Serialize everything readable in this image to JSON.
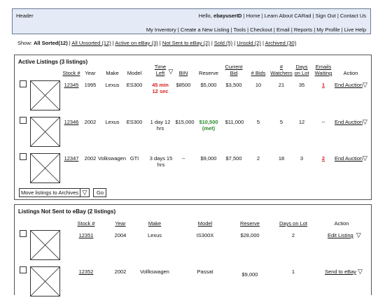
{
  "header": {
    "title": "Header",
    "greeting_prefix": "Hello, ",
    "user_id": "ebayuserID",
    "top_links": [
      "Home",
      "Learn About CARad",
      "Sign Out",
      "Contact Us"
    ],
    "nav_links": [
      "My Inventory",
      "Create a New Listing",
      "Tools",
      "Checkout",
      "Email",
      "Reports",
      "My Profile",
      "Live Help"
    ]
  },
  "filters": {
    "label": "Show:",
    "selected": "All Sorted(12)",
    "links": [
      "All Unsorted (12)",
      "Active on eBay (3)",
      "Not Sent to eBay (2)",
      "Sold (5)",
      "Unsold (2)",
      "Archived (30)"
    ]
  },
  "active": {
    "title": "Active Listings (3 listings)",
    "columns": {
      "stock": "Stock #",
      "year": "Year",
      "make": "Make",
      "model": "Model",
      "time_left_1": "Time",
      "time_left_2": "Left",
      "bin": "BIN",
      "reserve": "Reserve",
      "bid_1": "Current",
      "bid_2": "Bid",
      "bids": "# Bids",
      "watchers_1": "#",
      "watchers_2": "Watchers",
      "days_1": "Days",
      "days_2": "on Lot",
      "emails_1": "Emails",
      "emails_2": "Waiting",
      "action": "Action"
    },
    "rows": [
      {
        "stock": "12345",
        "year": "1995",
        "make": "Lexus",
        "model": "ES300",
        "time_1": "45 min",
        "time_2": "12 sec",
        "bin": "$8500",
        "reserve_1": "$5,000",
        "reserve_2": "",
        "bid": "$3,500",
        "bids": "10",
        "watchers": "21",
        "days": "35",
        "emails": "1",
        "action": "End Auction"
      },
      {
        "stock": "12346",
        "year": "2002",
        "make": "Lexus",
        "model": "ES300",
        "time_1": "1 day 12",
        "time_2": "hrs",
        "bin": "$15,000",
        "reserve_1": "$10,500",
        "reserve_2": "(met)",
        "bid": "$11,000",
        "bids": "5",
        "watchers": "5",
        "days": "12",
        "emails": "--",
        "action": "End Auction"
      },
      {
        "stock": "12347",
        "year": "2002",
        "make": "Volkswagen",
        "model": "GTI",
        "time_1": "3 days 15",
        "time_2": "hrs",
        "bin": "--",
        "reserve_1": "$9,000",
        "reserve_2": "",
        "bid": "$7,500",
        "bids": "2",
        "watchers": "18",
        "days": "3",
        "emails": "2",
        "action": "End Auction"
      }
    ],
    "bulk_select": "Move listings to Archives",
    "go_label": "Go"
  },
  "notsent": {
    "title": "Listings Not Sent to eBay (2 listings)",
    "columns": {
      "stock": "Stock #",
      "year": "Year",
      "make": "Make",
      "model": "Model",
      "reserve": "Reserve",
      "days": "Days on Lot",
      "action": "Action"
    },
    "rows": [
      {
        "stock": "12351",
        "year": "2004",
        "make": "Lexus",
        "model": "IS300X",
        "reserve": "$28,000",
        "days": "2",
        "action": "Edit Listing"
      },
      {
        "stock": "12352",
        "year": "2002",
        "make": "Vollkswagen",
        "model": "Passat",
        "reserve": "$9,000",
        "days": "1",
        "action": "Send to eBay"
      }
    ]
  }
}
